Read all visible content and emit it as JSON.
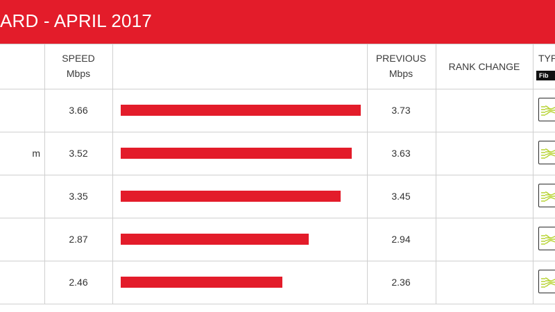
{
  "header": {
    "title": "ARD - APRIL 2017",
    "brand_color": "#e31c2a"
  },
  "columns": {
    "speed_label": "SPEED",
    "speed_unit": "Mbps",
    "previous_label": "PREVIOUS",
    "previous_unit": "Mbps",
    "rank_change_label": "RANK CHANGE",
    "type_label": "TYP",
    "type_badge": "Fib"
  },
  "rows": [
    {
      "name_fragment": "",
      "speed": "3.66",
      "speed_value": 3.66,
      "previous": "3.73",
      "type_icon": "fiber-optic-icon"
    },
    {
      "name_fragment": "m",
      "speed": "3.52",
      "speed_value": 3.52,
      "previous": "3.63",
      "type_icon": "fiber-optic-icon"
    },
    {
      "name_fragment": "",
      "speed": "3.35",
      "speed_value": 3.35,
      "previous": "3.45",
      "type_icon": "fiber-optic-icon"
    },
    {
      "name_fragment": "",
      "speed": "2.87",
      "speed_value": 2.87,
      "previous": "2.94",
      "type_icon": "fiber-optic-icon"
    },
    {
      "name_fragment": "",
      "speed": "2.46",
      "speed_value": 2.46,
      "previous": "2.36",
      "type_icon": "fiber-optic-icon"
    }
  ],
  "bar_max_value": 3.66,
  "icon_color": "#b7d332"
}
